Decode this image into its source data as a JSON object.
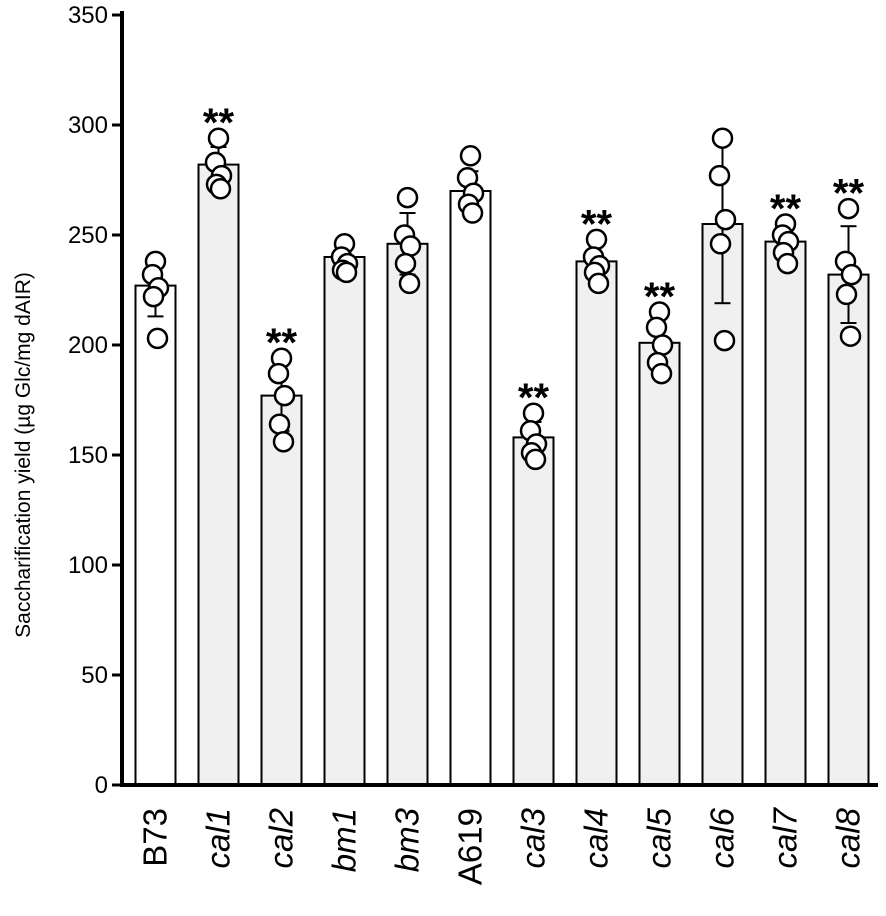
{
  "chart_data": {
    "type": "bar",
    "title": "",
    "xlabel": "",
    "ylabel": "Saccharification yield (µg Glc/mg dAIR)",
    "ylim": [
      0,
      350
    ],
    "yticks": [
      0,
      50,
      100,
      150,
      200,
      250,
      300,
      350
    ],
    "grid": false,
    "legend": "none",
    "categories": [
      "B73",
      "cal1",
      "cal2",
      "bm1",
      "bm3",
      "A619",
      "cal3",
      "cal4",
      "cal5",
      "cal6",
      "cal7",
      "cal8"
    ],
    "italic_categories": [
      false,
      true,
      true,
      true,
      true,
      false,
      true,
      true,
      true,
      true,
      true,
      true
    ],
    "values": [
      227,
      282,
      177,
      240,
      246,
      270,
      158,
      238,
      201,
      255,
      247,
      232
    ],
    "error": [
      14,
      8,
      16,
      5,
      14,
      9,
      7,
      9,
      12,
      36,
      8,
      22
    ],
    "points": [
      [
        238,
        232,
        226,
        222,
        203
      ],
      [
        294,
        283,
        277,
        273,
        271
      ],
      [
        194,
        187,
        177,
        164,
        156
      ],
      [
        246,
        240,
        237,
        234,
        233
      ],
      [
        267,
        250,
        245,
        237,
        228
      ],
      [
        286,
        276,
        269,
        264,
        260
      ],
      [
        169,
        161,
        155,
        151,
        148
      ],
      [
        248,
        240,
        236,
        233,
        228
      ],
      [
        215,
        208,
        200,
        192,
        187
      ],
      [
        294,
        277,
        257,
        246,
        202
      ],
      [
        255,
        250,
        247,
        242,
        237
      ],
      [
        262,
        238,
        232,
        223,
        204
      ]
    ],
    "significance": [
      "",
      "**",
      "**",
      "",
      "",
      "",
      "**",
      "**",
      "**",
      "",
      "**",
      "**"
    ],
    "colors": {
      "control_bar": "#ffffff",
      "mutant_bar": "#f0f0f0",
      "outline": "#000000",
      "point_fill": "#ffffff"
    },
    "bar_fill_type": [
      "control",
      "mutant",
      "mutant",
      "mutant",
      "mutant",
      "control",
      "mutant",
      "mutant",
      "mutant",
      "mutant",
      "mutant",
      "mutant"
    ]
  }
}
